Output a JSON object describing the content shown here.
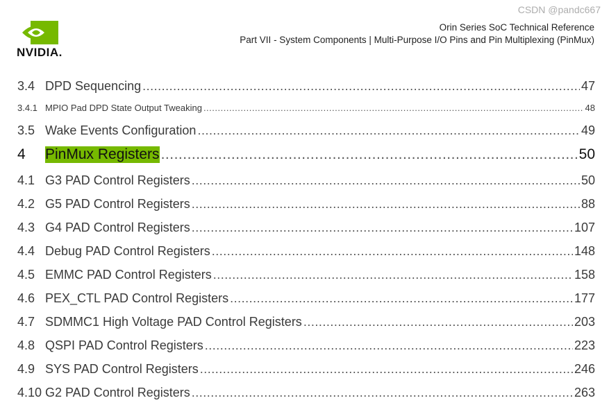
{
  "header": {
    "logo_text": "NVIDIA.",
    "title": "Orin Series SoC Technical Reference",
    "subtitle": "Part VII - System Components | Multi-Purpose I/O Pins and Pin Multiplexing (PinMux)"
  },
  "colors": {
    "brand": "#76b900"
  },
  "toc": [
    {
      "num": "3.4",
      "title": "DPD Sequencing",
      "page": "47",
      "style": "r"
    },
    {
      "num": "3.4.1",
      "title": "MPIO Pad DPD State Output Tweaking",
      "page": "48",
      "style": "small"
    },
    {
      "num": "3.5",
      "title": "Wake Events Configuration",
      "page": "49",
      "style": "r"
    },
    {
      "num": "4",
      "title": "PinMux Registers",
      "page": "50",
      "style": "big"
    },
    {
      "num": "4.1",
      "title": "G3 PAD Control Registers",
      "page": "50",
      "style": "r"
    },
    {
      "num": "4.2",
      "title": "G5 PAD Control Registers",
      "page": "88",
      "style": "r"
    },
    {
      "num": "4.3",
      "title": "G4 PAD Control Registers",
      "page": "107",
      "style": "r"
    },
    {
      "num": "4.4",
      "title": "Debug PAD Control Registers",
      "page": "148",
      "style": "r"
    },
    {
      "num": "4.5",
      "title": "EMMC PAD Control Registers",
      "page": "158",
      "style": "r"
    },
    {
      "num": "4.6",
      "title": "PEX_CTL PAD Control Registers",
      "page": "177",
      "style": "r"
    },
    {
      "num": "4.7",
      "title": "SDMMC1 High Voltage PAD Control Registers",
      "page": "203",
      "style": "r"
    },
    {
      "num": "4.8",
      "title": "QSPI PAD Control Registers",
      "page": "223",
      "style": "r"
    },
    {
      "num": "4.9",
      "title": "SYS PAD Control Registers",
      "page": "246",
      "style": "r"
    },
    {
      "num": "4.10",
      "title": "G2 PAD Control Registers",
      "page": "263",
      "style": "r"
    }
  ],
  "watermark": "CSDN @pandc667"
}
